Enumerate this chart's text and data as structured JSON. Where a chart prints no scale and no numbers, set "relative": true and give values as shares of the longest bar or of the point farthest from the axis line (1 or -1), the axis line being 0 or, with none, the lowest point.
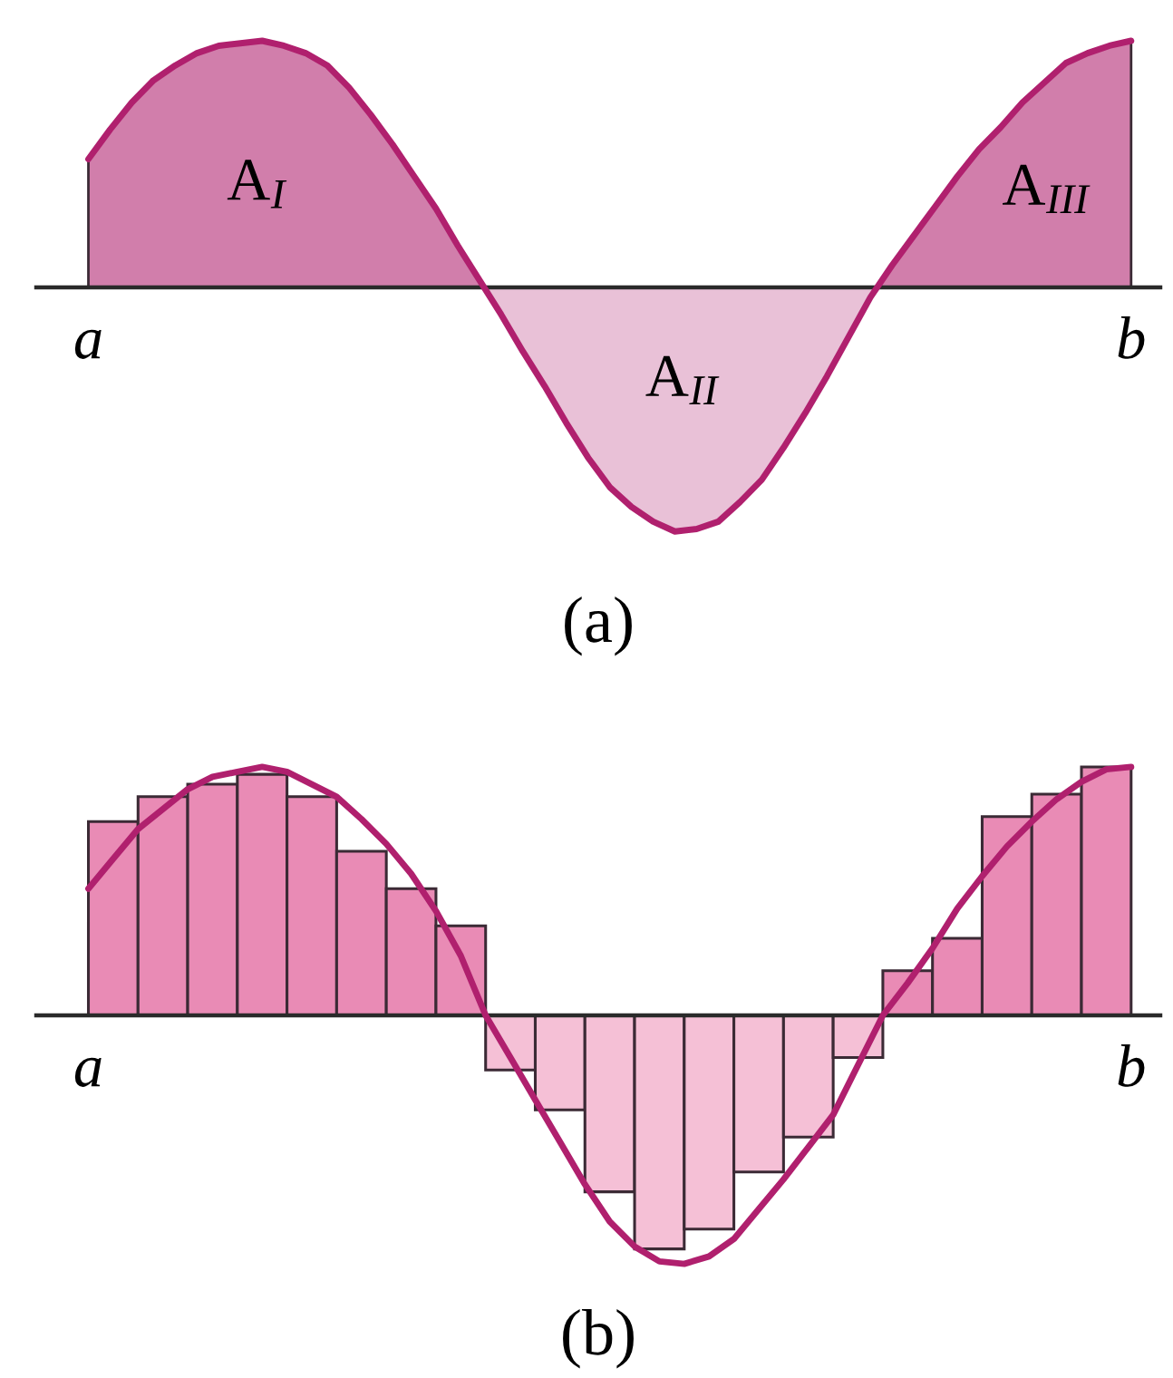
{
  "chart_data": [
    {
      "type": "area",
      "relative": true,
      "categories": [
        "a",
        null,
        null,
        null,
        null,
        null,
        null,
        null,
        null,
        null,
        null,
        null,
        null,
        null,
        null,
        null,
        null,
        null,
        null,
        null,
        null,
        null,
        null,
        null,
        null,
        null,
        null,
        null,
        null,
        null,
        null,
        null,
        null,
        null,
        null,
        null,
        null,
        null,
        null,
        null,
        null,
        null,
        null,
        null,
        null,
        null,
        null,
        null,
        "b"
      ],
      "series": [
        {
          "color": "#b0206e",
          "values": [
            0.52,
            0.64,
            0.75,
            0.84,
            0.9,
            0.95,
            0.98,
            0.99,
            1.0,
            0.98,
            0.95,
            0.9,
            0.81,
            0.7,
            0.58,
            0.45,
            0.32,
            0.17,
            0.03,
            -0.11,
            -0.26,
            -0.4,
            -0.55,
            -0.69,
            -0.81,
            -0.89,
            -0.95,
            -0.99,
            -0.98,
            -0.95,
            -0.87,
            -0.78,
            -0.65,
            -0.51,
            -0.36,
            -0.2,
            -0.04,
            0.09,
            0.21,
            0.33,
            0.45,
            0.56,
            0.65,
            0.75,
            0.83,
            0.91,
            0.95,
            0.98,
            1.0
          ]
        }
      ],
      "annotations": [
        "A$_{I}$",
        "A$_{II}$",
        "A$_{III}$",
        "(a)"
      ]
    },
    {
      "type": "bar",
      "relative": true,
      "categories": [
        "a",
        null,
        null,
        null,
        null,
        null,
        null,
        null,
        null,
        null,
        null,
        null,
        null,
        null,
        null,
        null,
        null,
        null,
        null,
        null,
        null,
        null,
        null,
        null,
        null,
        null,
        null,
        null,
        null,
        null,
        null,
        null,
        null,
        null,
        null,
        null,
        null,
        null,
        null,
        null,
        null,
        null,
        "b"
      ],
      "series": [
        {
          "values": [
            null,
            0.78,
            null,
            0.88,
            null,
            0.93,
            null,
            0.97,
            null,
            0.88,
            null,
            0.66,
            null,
            0.51,
            null,
            0.36,
            null,
            -0.22,
            null,
            -0.38,
            null,
            -0.71,
            null,
            -0.94,
            null,
            -0.86,
            null,
            -0.63,
            null,
            -0.49,
            null,
            -0.17,
            null,
            0.18,
            null,
            0.31,
            null,
            0.8,
            null,
            0.89,
            null,
            1.0,
            null
          ],
          "colors": [
            null,
            "#e98bb5",
            null,
            "#e98bb5",
            null,
            "#e98bb5",
            null,
            "#e98bb5",
            null,
            "#e98bb5",
            null,
            "#e98bb5",
            null,
            "#e98bb5",
            null,
            "#e98bb5",
            null,
            "#f5c0d6",
            null,
            "#f5c0d6",
            null,
            "#f5c0d6",
            null,
            "#f5c0d6",
            null,
            "#f5c0d6",
            null,
            "#f5c0d6",
            null,
            "#f5c0d6",
            null,
            "#f5c0d6",
            null,
            "#e98bb5",
            null,
            "#e98bb5",
            null,
            "#e98bb5",
            null,
            "#e98bb5",
            null,
            "#e98bb5",
            null
          ]
        },
        {
          "type": "line",
          "color": "#b0206e",
          "values": [
            0.51,
            0.63,
            0.75,
            0.83,
            0.91,
            0.96,
            0.98,
            1.0,
            0.98,
            0.93,
            0.88,
            0.79,
            0.69,
            0.57,
            0.42,
            0.24,
            0.0,
            -0.17,
            -0.34,
            -0.51,
            -0.68,
            -0.83,
            -0.93,
            -0.99,
            -1.0,
            -0.97,
            -0.9,
            -0.78,
            -0.66,
            -0.53,
            -0.4,
            -0.2,
            0.0,
            0.13,
            0.27,
            0.43,
            0.56,
            0.68,
            0.78,
            0.87,
            0.94,
            0.99,
            1.0
          ]
        }
      ],
      "annotations": [
        "(b)"
      ]
    }
  ]
}
